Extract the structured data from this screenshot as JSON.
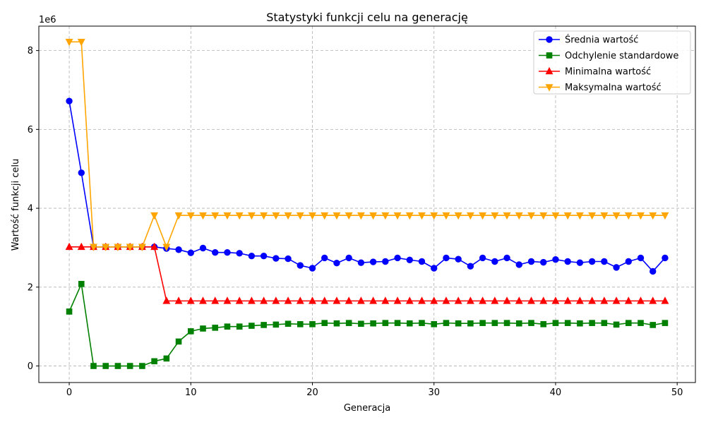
{
  "chart_data": {
    "type": "line",
    "title": "Statystyki funkcji celu na generację",
    "xlabel": "Generacja",
    "ylabel": "Wartość funkcji celu",
    "y_multiplier_label": "1e6",
    "xlim": [
      -2.5,
      51.5
    ],
    "ylim": [
      -0.42,
      8.62
    ],
    "xticks": [
      0,
      10,
      20,
      30,
      40,
      50
    ],
    "yticks": [
      0,
      2,
      4,
      6,
      8
    ],
    "y_scale_factor": 1000000,
    "grid": true,
    "legend_position": "top-right",
    "x": [
      0,
      1,
      2,
      3,
      4,
      5,
      6,
      7,
      8,
      9,
      10,
      11,
      12,
      13,
      14,
      15,
      16,
      17,
      18,
      19,
      20,
      21,
      22,
      23,
      24,
      25,
      26,
      27,
      28,
      29,
      30,
      31,
      32,
      33,
      34,
      35,
      36,
      37,
      38,
      39,
      40,
      41,
      42,
      43,
      44,
      45,
      46,
      47,
      48,
      49
    ],
    "series": [
      {
        "name": "Średnia wartość",
        "color": "#0000ff",
        "marker": "circle",
        "values": [
          6.72,
          4.9,
          3.02,
          3.02,
          3.02,
          3.02,
          3.02,
          3.02,
          2.98,
          2.95,
          2.87,
          2.99,
          2.88,
          2.88,
          2.86,
          2.79,
          2.79,
          2.73,
          2.72,
          2.55,
          2.48,
          2.74,
          2.61,
          2.74,
          2.62,
          2.64,
          2.65,
          2.74,
          2.69,
          2.65,
          2.48,
          2.74,
          2.71,
          2.53,
          2.74,
          2.65,
          2.74,
          2.57,
          2.65,
          2.63,
          2.7,
          2.65,
          2.62,
          2.65,
          2.65,
          2.5,
          2.65,
          2.74,
          2.4,
          2.74
        ]
      },
      {
        "name": "Odchylenie standardowe",
        "color": "#008000",
        "marker": "square",
        "values": [
          1.38,
          2.08,
          0.0,
          0.0,
          0.0,
          0.0,
          0.0,
          0.12,
          0.19,
          0.62,
          0.88,
          0.95,
          0.97,
          1.0,
          1.0,
          1.02,
          1.04,
          1.05,
          1.07,
          1.06,
          1.06,
          1.09,
          1.08,
          1.09,
          1.07,
          1.08,
          1.09,
          1.09,
          1.08,
          1.09,
          1.06,
          1.09,
          1.08,
          1.08,
          1.09,
          1.09,
          1.09,
          1.08,
          1.09,
          1.06,
          1.09,
          1.09,
          1.08,
          1.09,
          1.09,
          1.05,
          1.09,
          1.09,
          1.04,
          1.09
        ]
      },
      {
        "name": "Minimalna wartość",
        "color": "#ff0000",
        "marker": "triangle-up",
        "values": [
          3.02,
          3.02,
          3.02,
          3.02,
          3.02,
          3.02,
          3.02,
          3.02,
          1.65,
          1.65,
          1.65,
          1.65,
          1.65,
          1.65,
          1.65,
          1.65,
          1.65,
          1.65,
          1.65,
          1.65,
          1.65,
          1.65,
          1.65,
          1.65,
          1.65,
          1.65,
          1.65,
          1.65,
          1.65,
          1.65,
          1.65,
          1.65,
          1.65,
          1.65,
          1.65,
          1.65,
          1.65,
          1.65,
          1.65,
          1.65,
          1.65,
          1.65,
          1.65,
          1.65,
          1.65,
          1.65,
          1.65,
          1.65,
          1.65,
          1.65
        ]
      },
      {
        "name": "Maksymalna wartość",
        "color": "#ffa500",
        "marker": "triangle-down",
        "values": [
          8.22,
          8.22,
          3.02,
          3.02,
          3.02,
          3.02,
          3.02,
          3.82,
          3.02,
          3.82,
          3.82,
          3.82,
          3.82,
          3.82,
          3.82,
          3.82,
          3.82,
          3.82,
          3.82,
          3.82,
          3.82,
          3.82,
          3.82,
          3.82,
          3.82,
          3.82,
          3.82,
          3.82,
          3.82,
          3.82,
          3.82,
          3.82,
          3.82,
          3.82,
          3.82,
          3.82,
          3.82,
          3.82,
          3.82,
          3.82,
          3.82,
          3.82,
          3.82,
          3.82,
          3.82,
          3.82,
          3.82,
          3.82,
          3.82,
          3.82
        ]
      }
    ]
  }
}
